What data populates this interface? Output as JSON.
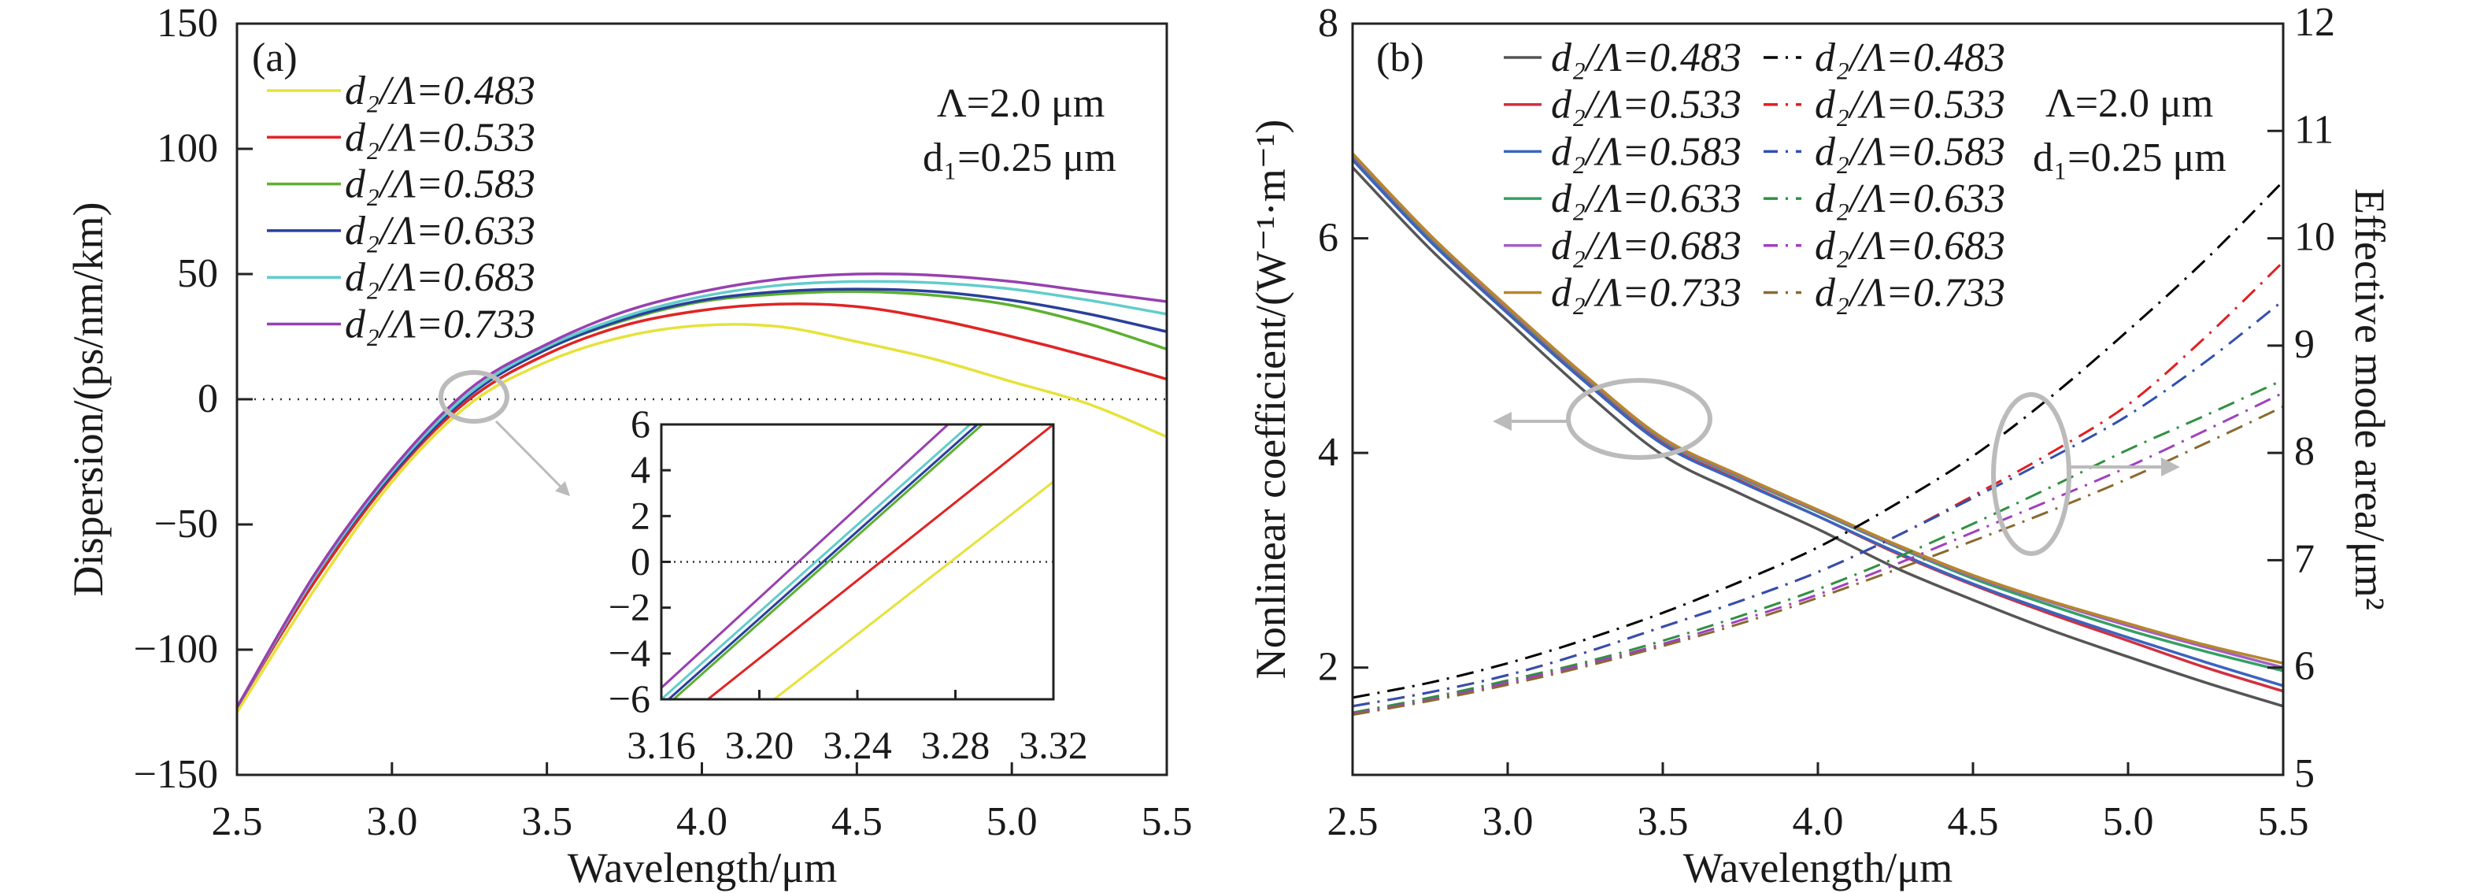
{
  "chart_data": [
    {
      "type": "line",
      "panel_label": "(a)",
      "xlabel": "Wavelength/μm",
      "ylabel": "Dispersion/(ps/nm/km)",
      "xlim": [
        2.5,
        5.5
      ],
      "ylim": [
        -150,
        150
      ],
      "xticks": [
        "2.5",
        "3.0",
        "3.5",
        "4.0",
        "4.5",
        "5.0",
        "5.5"
      ],
      "yticks": [
        "−150",
        "−100",
        "−50",
        "0",
        "50",
        "100",
        "150"
      ],
      "annotations": [
        "Λ=2.0 μm",
        "d₁=0.25 μm"
      ],
      "legend_position": "top-left",
      "x": [
        2.5,
        2.75,
        3.0,
        3.25,
        3.5,
        3.75,
        4.0,
        4.25,
        4.5,
        4.75,
        5.0,
        5.25,
        5.5
      ],
      "series": [
        {
          "name": "d₂/Λ=0.483",
          "color": "#e6e23a",
          "values": [
            -125,
            -76,
            -33,
            -2,
            15,
            25,
            29.5,
            29,
            23,
            16,
            7,
            -2,
            -15
          ]
        },
        {
          "name": "d₂/Λ=0.533",
          "color": "#e02424",
          "values": [
            -123,
            -73,
            -31,
            0,
            18,
            29.5,
            35.5,
            38,
            37,
            32,
            25,
            17,
            8
          ]
        },
        {
          "name": "d₂/Λ=0.583",
          "color": "#5cb030",
          "values": [
            -123,
            -71,
            -30,
            1.5,
            20,
            31.5,
            39,
            42,
            43,
            41.5,
            37.5,
            30,
            20
          ]
        },
        {
          "name": "d₂/Λ=0.633",
          "color": "#2a3f9c",
          "values": [
            -123,
            -71,
            -30,
            1.5,
            20,
            32,
            39.5,
            43,
            44,
            43,
            39.5,
            34,
            27
          ]
        },
        {
          "name": "d₂/Λ=0.683",
          "color": "#62cccc",
          "values": [
            -123,
            -71,
            -29,
            2.5,
            21,
            33,
            41,
            45.5,
            47,
            46.5,
            44,
            39.5,
            34
          ]
        },
        {
          "name": "d₂/Λ=0.733",
          "color": "#9840b0",
          "values": [
            -123,
            -70,
            -28,
            4,
            22,
            35,
            43,
            48,
            50,
            49.5,
            47,
            43,
            39
          ]
        }
      ],
      "inset": {
        "xlim": [
          3.16,
          3.32
        ],
        "ylim": [
          -6,
          6
        ],
        "xticks": [
          "3.16",
          "3.20",
          "3.24",
          "3.28",
          "3.32"
        ],
        "yticks": [
          "−6",
          "−4",
          "−2",
          "0",
          "2",
          "4",
          "6"
        ],
        "series": [
          {
            "name": "d₂/Λ=0.483",
            "points": [
              [
                3.206,
                -6
              ],
              [
                3.32,
                3.5
              ]
            ]
          },
          {
            "name": "d₂/Λ=0.533",
            "points": [
              [
                3.179,
                -6
              ],
              [
                3.32,
                6
              ]
            ]
          },
          {
            "name": "d₂/Λ=0.583",
            "points": [
              [
                3.165,
                -6
              ],
              [
                3.291,
                6
              ]
            ]
          },
          {
            "name": "d₂/Λ=0.633",
            "points": [
              [
                3.163,
                -6
              ],
              [
                3.289,
                6
              ]
            ]
          },
          {
            "name": "d₂/Λ=0.683",
            "points": [
              [
                3.16,
                -6
              ],
              [
                3.286,
                6
              ]
            ]
          },
          {
            "name": "d₂/Λ=0.733",
            "points": [
              [
                3.16,
                -5.5
              ],
              [
                3.277,
                6
              ]
            ]
          }
        ]
      }
    },
    {
      "type": "line",
      "panel_label": "(b)",
      "xlabel": "Wavelength/μm",
      "ylabel": "Nonlinear coefficient/(W⁻¹·m⁻¹)",
      "y2label": "Effective mode area/μm²",
      "xlim": [
        2.5,
        5.5
      ],
      "ylim": [
        1,
        8
      ],
      "y2lim": [
        5,
        12
      ],
      "xticks": [
        "2.5",
        "3.0",
        "3.5",
        "4.0",
        "4.5",
        "5.0",
        "5.5"
      ],
      "yticks": [
        "2",
        "4",
        "6",
        "8"
      ],
      "y2ticks": [
        "5",
        "6",
        "7",
        "8",
        "9",
        "10",
        "11",
        "12"
      ],
      "annotations": [
        "Λ=2.0 μm",
        "d₁=0.25 μm"
      ],
      "legend_position": "top",
      "x": [
        2.5,
        2.75,
        3.0,
        3.25,
        3.5,
        3.75,
        4.0,
        4.25,
        4.5,
        4.75,
        5.0,
        5.25,
        5.5
      ],
      "series": [
        {
          "name": "d₂/Λ=0.483",
          "axis": "left",
          "style": "solid",
          "color": "#555555",
          "values": [
            6.66,
            5.9,
            5.23,
            4.57,
            3.98,
            3.62,
            3.29,
            2.93,
            2.63,
            2.35,
            2.1,
            1.86,
            1.64
          ]
        },
        {
          "name": "d₂/Λ=0.533",
          "axis": "left",
          "style": "solid",
          "color": "#d03040",
          "values": [
            6.74,
            5.98,
            5.31,
            4.67,
            4.09,
            3.74,
            3.41,
            3.07,
            2.77,
            2.5,
            2.25,
            2.0,
            1.78
          ]
        },
        {
          "name": "d₂/Λ=0.583",
          "axis": "left",
          "style": "solid",
          "color": "#3a64c0",
          "values": [
            6.73,
            5.97,
            5.3,
            4.66,
            4.08,
            3.73,
            3.41,
            3.08,
            2.78,
            2.52,
            2.28,
            2.05,
            1.83
          ]
        },
        {
          "name": "d₂/Λ=0.633",
          "axis": "left",
          "style": "solid",
          "color": "#35a065",
          "values": [
            6.77,
            6.01,
            5.34,
            4.7,
            4.12,
            3.77,
            3.45,
            3.13,
            2.83,
            2.58,
            2.35,
            2.15,
            1.97
          ]
        },
        {
          "name": "d₂/Λ=0.683",
          "axis": "left",
          "style": "solid",
          "color": "#a060c8",
          "values": [
            6.78,
            6.02,
            5.35,
            4.71,
            4.13,
            3.78,
            3.46,
            3.14,
            2.85,
            2.61,
            2.39,
            2.19,
            2.0
          ]
        },
        {
          "name": "d₂/Λ=0.733",
          "axis": "left",
          "style": "solid",
          "color": "#b8862a",
          "values": [
            6.79,
            6.03,
            5.36,
            4.72,
            4.14,
            3.79,
            3.47,
            3.15,
            2.86,
            2.62,
            2.41,
            2.21,
            2.04
          ]
        },
        {
          "name": "d₂/Λ=0.483",
          "axis": "right",
          "style": "dash-dot",
          "color": "#000000",
          "values": [
            5.72,
            5.86,
            6.04,
            6.26,
            6.51,
            6.8,
            7.12,
            7.52,
            7.97,
            8.52,
            9.14,
            9.8,
            10.53
          ]
        },
        {
          "name": "d₂/Λ=0.533",
          "axis": "right",
          "style": "dash-dot",
          "color": "#e02020",
          "values": [
            5.64,
            5.77,
            5.93,
            6.14,
            6.38,
            6.62,
            6.89,
            7.22,
            7.6,
            8.0,
            8.45,
            9.08,
            9.78
          ]
        },
        {
          "name": "d₂/Λ=0.583",
          "axis": "right",
          "style": "dash-dot",
          "color": "#3050b0",
          "values": [
            5.64,
            5.77,
            5.93,
            6.14,
            6.38,
            6.62,
            6.89,
            7.22,
            7.58,
            7.95,
            8.35,
            8.85,
            9.42
          ]
        },
        {
          "name": "d₂/Λ=0.633",
          "axis": "right",
          "style": "dash-dot",
          "color": "#309040",
          "values": [
            5.58,
            5.72,
            5.88,
            6.05,
            6.25,
            6.48,
            6.73,
            7.02,
            7.34,
            7.68,
            8.03,
            8.35,
            8.68
          ]
        },
        {
          "name": "d₂/Λ=0.683",
          "axis": "right",
          "style": "dash-dot",
          "color": "#a040c0",
          "values": [
            5.57,
            5.7,
            5.86,
            6.03,
            6.22,
            6.44,
            6.68,
            6.96,
            7.26,
            7.56,
            7.87,
            8.21,
            8.56
          ]
        },
        {
          "name": "d₂/Λ=0.733",
          "axis": "right",
          "style": "dash-dot",
          "color": "#8a6a30",
          "values": [
            5.56,
            5.69,
            5.84,
            6.01,
            6.2,
            6.41,
            6.65,
            6.91,
            7.18,
            7.46,
            7.76,
            8.09,
            8.43
          ]
        }
      ]
    }
  ]
}
